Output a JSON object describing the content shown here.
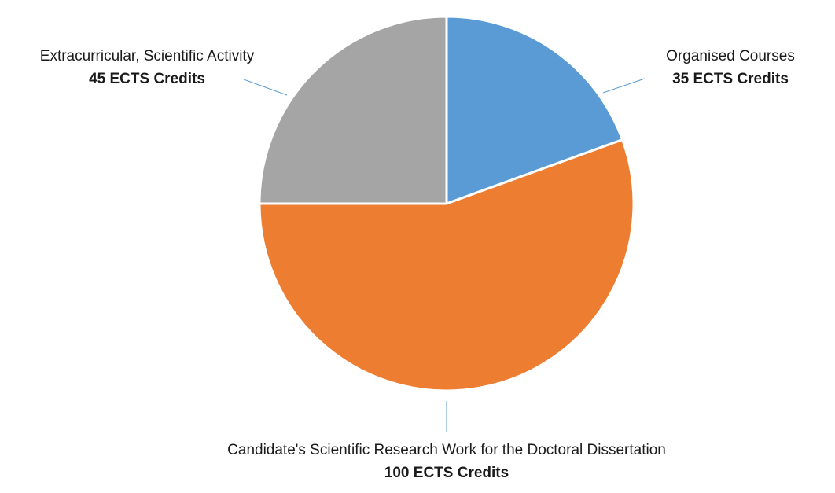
{
  "chart_data": {
    "type": "pie",
    "title": "",
    "slices": [
      {
        "label": "Organised Courses",
        "value": 35,
        "value_label": "35 ECTS Credits",
        "color": "#5b9bd5"
      },
      {
        "label": "Candidate's Scientific Research Work for the Doctoral Dissertation",
        "value": 100,
        "value_label": "100 ECTS Credits",
        "color": "#ed7d31"
      },
      {
        "label": "Extracurricular, Scientific Activity",
        "value": 45,
        "value_label": "45 ECTS Credits",
        "color": "#a5a5a5"
      }
    ],
    "start_angle": "12 o'clock",
    "direction": "clockwise",
    "legend": "none",
    "data_labels": "outside with leader lines",
    "leader_line_color": "#5b9bd5",
    "slice_border_color": "#ffffff"
  }
}
